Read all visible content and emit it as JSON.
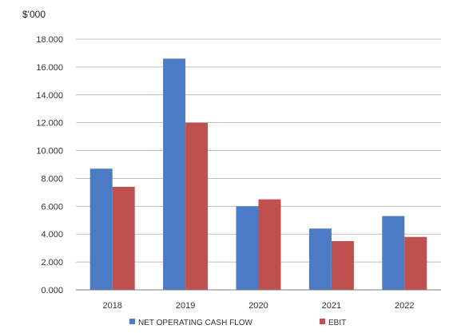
{
  "chart_data": {
    "type": "bar",
    "unit_label": "$'000",
    "categories": [
      "2018",
      "2019",
      "2020",
      "2021",
      "2022"
    ],
    "series": [
      {
        "name": "NET OPERATING CASH FLOW",
        "color": "#4a7bc4",
        "values": [
          8.7,
          16.6,
          6.0,
          4.4,
          5.3
        ]
      },
      {
        "name": "EBIT",
        "color": "#c0504d",
        "values": [
          7.4,
          12.0,
          6.5,
          3.5,
          3.8
        ]
      }
    ],
    "y_ticks": [
      "0.000",
      "2.000",
      "4.000",
      "6.000",
      "8.000",
      "10.000",
      "12.000",
      "14.000",
      "16.000",
      "18.000"
    ],
    "ylim": [
      0,
      18
    ],
    "grid": true,
    "legend_position": "bottom"
  }
}
